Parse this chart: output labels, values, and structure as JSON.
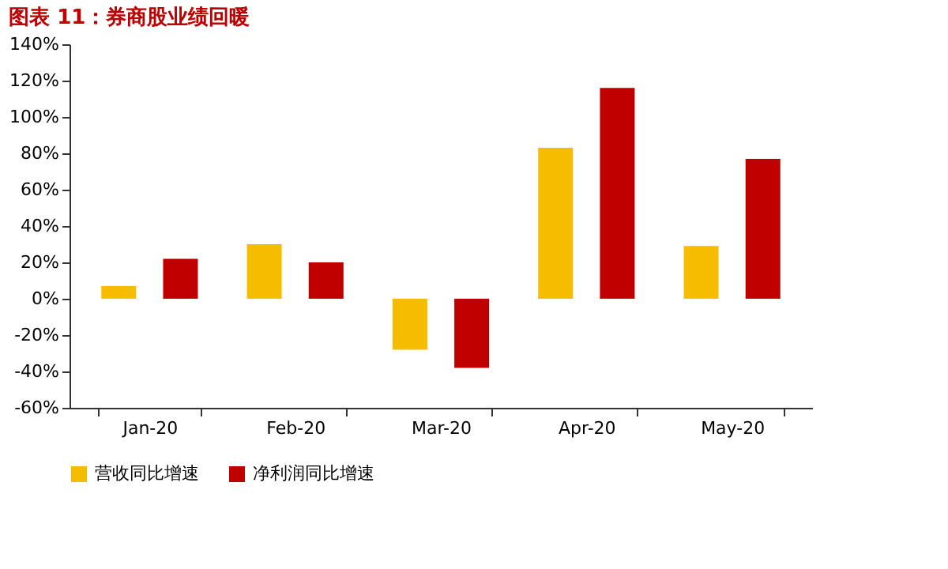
{
  "chart_data": {
    "type": "bar",
    "title": "图表 11：券商股业绩回暖",
    "categories": [
      "Jan-20",
      "Feb-20",
      "Mar-20",
      "Apr-20",
      "May-20"
    ],
    "series": [
      {
        "name": "营收同比增速",
        "color": "#f5bc00",
        "values": [
          7,
          30,
          -28,
          83,
          29
        ]
      },
      {
        "name": "净利润同比增速",
        "color": "#c00000",
        "values": [
          22,
          20,
          -38,
          116,
          77
        ]
      }
    ],
    "ylim": [
      -60,
      140
    ],
    "yticks": [
      {
        "value": -60,
        "label": "-60%"
      },
      {
        "value": -40,
        "label": "-40%"
      },
      {
        "value": -20,
        "label": "-20%"
      },
      {
        "value": 0,
        "label": "0%"
      },
      {
        "value": 20,
        "label": "20%"
      },
      {
        "value": 40,
        "label": "40%"
      },
      {
        "value": 60,
        "label": "60%"
      },
      {
        "value": 80,
        "label": "80%"
      },
      {
        "value": 100,
        "label": "100%"
      },
      {
        "value": 120,
        "label": "120%"
      },
      {
        "value": 140,
        "label": "140%"
      }
    ],
    "grid": false,
    "legend": "bottom"
  }
}
